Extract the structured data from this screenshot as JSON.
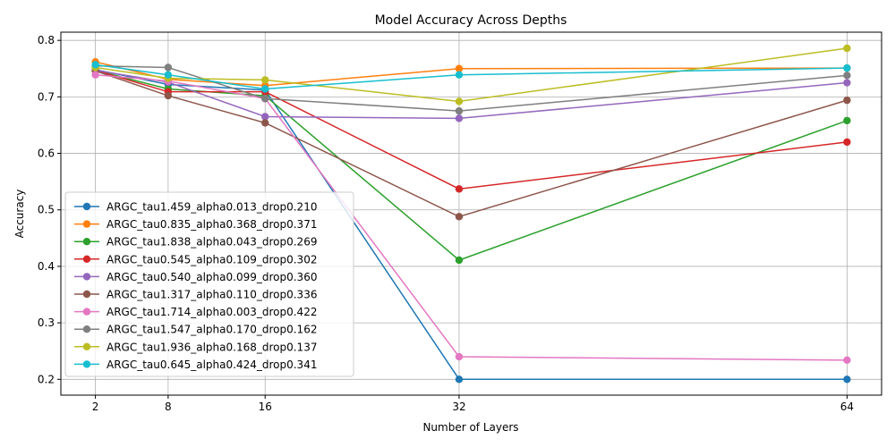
{
  "chart_data": {
    "type": "line",
    "title": "Model Accuracy Across Depths",
    "xlabel": "Number of Layers",
    "ylabel": "Accuracy",
    "x": [
      2,
      8,
      16,
      32,
      64
    ],
    "xlim": [
      -0.85,
      66.85
    ],
    "ylim": [
      0.172,
      0.8145
    ],
    "yticks": [
      0.2,
      0.3,
      0.4,
      0.5,
      0.6,
      0.7,
      0.8
    ],
    "ytick_labels": [
      "0.2",
      "0.3",
      "0.4",
      "0.5",
      "0.6",
      "0.7",
      "0.8"
    ],
    "xtick_labels": [
      "2",
      "8",
      "16",
      "32",
      "64"
    ],
    "grid": true,
    "legend_position": "lower-left",
    "series": [
      {
        "name": "ARGC_tau1.459_alpha0.013_drop0.210",
        "color": "#1f77b4",
        "values": [
          0.748,
          0.722,
          0.712,
          0.2,
          0.2
        ]
      },
      {
        "name": "ARGC_tau0.835_alpha0.368_drop0.371",
        "color": "#ff7f0e",
        "values": [
          0.762,
          0.731,
          0.72,
          0.75,
          0.751
        ]
      },
      {
        "name": "ARGC_tau1.838_alpha0.043_drop0.269",
        "color": "#2ca02c",
        "values": [
          0.747,
          0.714,
          0.702,
          0.411,
          0.658
        ]
      },
      {
        "name": "ARGC_tau0.545_alpha0.109_drop0.302",
        "color": "#d62728",
        "values": [
          0.747,
          0.709,
          0.709,
          0.537,
          0.62
        ]
      },
      {
        "name": "ARGC_tau0.540_alpha0.099_drop0.360",
        "color": "#9467bd",
        "values": [
          0.747,
          0.726,
          0.665,
          0.662,
          0.725
        ]
      },
      {
        "name": "ARGC_tau1.317_alpha0.110_drop0.336",
        "color": "#8c564b",
        "values": [
          0.746,
          0.702,
          0.654,
          0.488,
          0.694
        ]
      },
      {
        "name": "ARGC_tau1.714_alpha0.003_drop0.422",
        "color": "#e377c2",
        "values": [
          0.739,
          0.728,
          0.697,
          0.24,
          0.234
        ]
      },
      {
        "name": "ARGC_tau1.547_alpha0.170_drop0.162",
        "color": "#7f7f7f",
        "values": [
          0.755,
          0.752,
          0.697,
          0.675,
          0.738
        ]
      },
      {
        "name": "ARGC_tau1.936_alpha0.168_drop0.137",
        "color": "#bcbd22",
        "values": [
          0.752,
          0.733,
          0.73,
          0.692,
          0.786
        ]
      },
      {
        "name": "ARGC_tau0.645_alpha0.424_drop0.341",
        "color": "#17becf",
        "values": [
          0.757,
          0.739,
          0.714,
          0.739,
          0.751
        ]
      }
    ]
  }
}
